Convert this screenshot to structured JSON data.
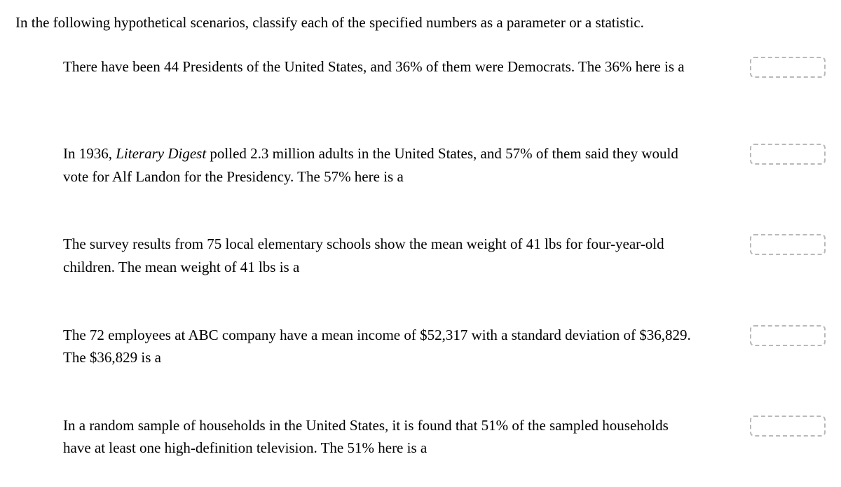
{
  "intro": "In the following hypothetical scenarios, classify each of the specified numbers as a parameter or a statistic.",
  "questions": [
    {
      "text_parts": [
        {
          "text": "There have been 44 Presidents of the United States, and 36% of them were Democrats. The 36% here is a",
          "italic": false
        }
      ],
      "answer": ""
    },
    {
      "text_parts": [
        {
          "text": "In 1936, ",
          "italic": false
        },
        {
          "text": "Literary Digest",
          "italic": true
        },
        {
          "text": " polled 2.3 million adults in the United States, and 57% of them said they would vote for Alf Landon for the Presidency. The 57% here is a",
          "italic": false
        }
      ],
      "answer": ""
    },
    {
      "text_parts": [
        {
          "text": "The survey results from 75 local elementary schools show the mean weight of 41 lbs for four-year-old children. The mean weight of 41 lbs is a",
          "italic": false
        }
      ],
      "answer": ""
    },
    {
      "text_parts": [
        {
          "text": "The 72 employees at ABC company have a mean income of $52,317 with a standard deviation of $36,829. The $36,829 is a",
          "italic": false
        }
      ],
      "answer": ""
    },
    {
      "text_parts": [
        {
          "text": "In a random sample of households in the United States, it is found that 51% of the sampled households have at least one high-definition television. The 51% here is a",
          "italic": false
        }
      ],
      "answer": ""
    }
  ]
}
